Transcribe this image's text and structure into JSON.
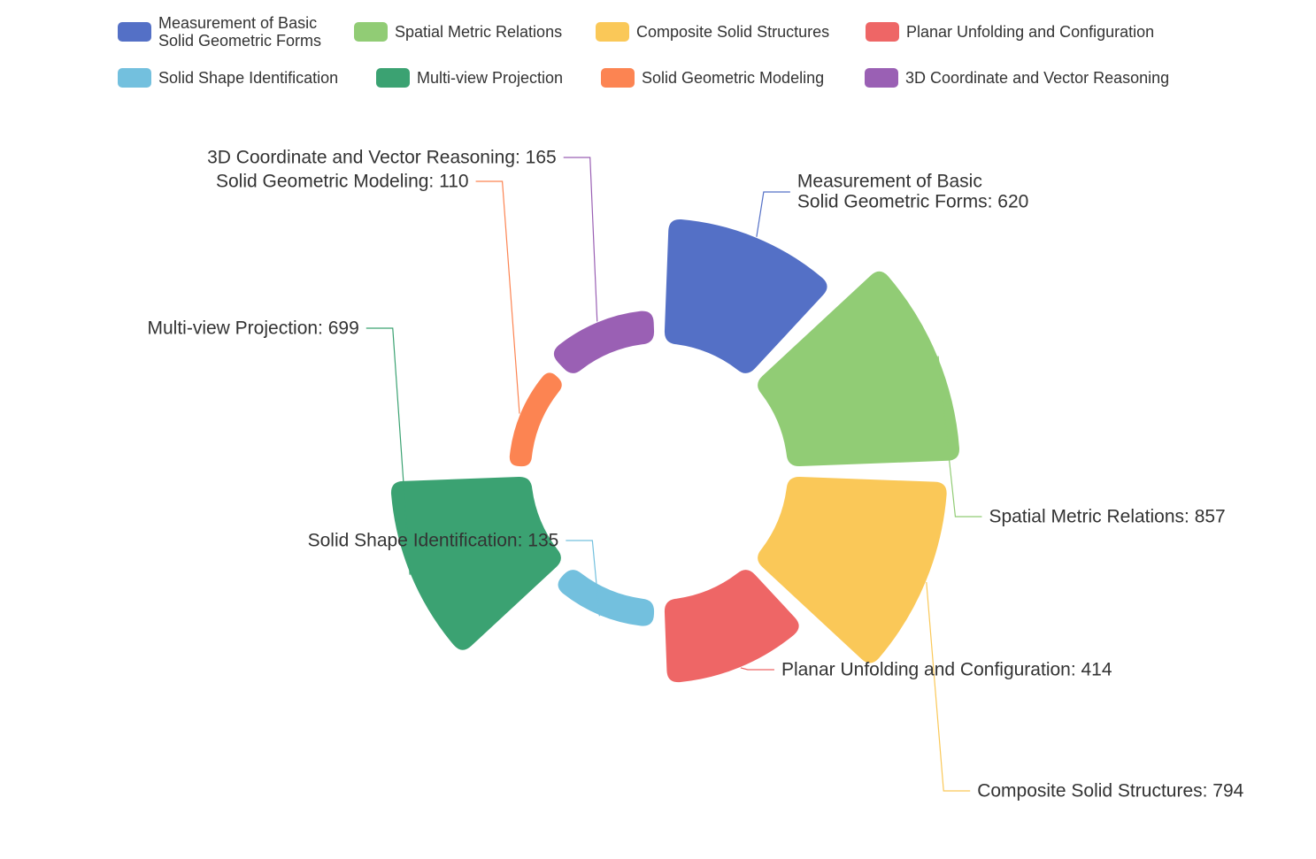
{
  "chart_data": {
    "type": "pie",
    "variant": "donut-rose",
    "title": "",
    "legend_position": "top",
    "series": [
      {
        "name": "Measurement of Basic\nSolid Geometric Forms",
        "value": 620,
        "color": "#5470c6",
        "label": "Measurement of Basic\nSolid Geometric Forms: 620"
      },
      {
        "name": "Spatial Metric Relations",
        "value": 857,
        "color": "#91cc75",
        "label": "Spatial Metric Relations: 857"
      },
      {
        "name": "Composite Solid Structures",
        "value": 794,
        "color": "#fac858",
        "label": "Composite Solid Structures: 794"
      },
      {
        "name": "Planar Unfolding and Configuration",
        "value": 414,
        "color": "#ee6666",
        "label": "Planar Unfolding and Configuration: 414"
      },
      {
        "name": "Solid Shape Identification",
        "value": 135,
        "color": "#73c0de",
        "label": "Solid Shape Identification: 135"
      },
      {
        "name": "Multi-view Projection",
        "value": 699,
        "color": "#3ba272",
        "label": "Multi-view Projection: 699"
      },
      {
        "name": "Solid Geometric Modeling",
        "value": 110,
        "color": "#fc8452",
        "label": "Solid Geometric Modeling: 110"
      },
      {
        "name": "3D Coordinate and Vector Reasoning",
        "value": 165,
        "color": "#9a60b4",
        "label": "3D Coordinate and Vector Reasoning: 165"
      }
    ]
  }
}
